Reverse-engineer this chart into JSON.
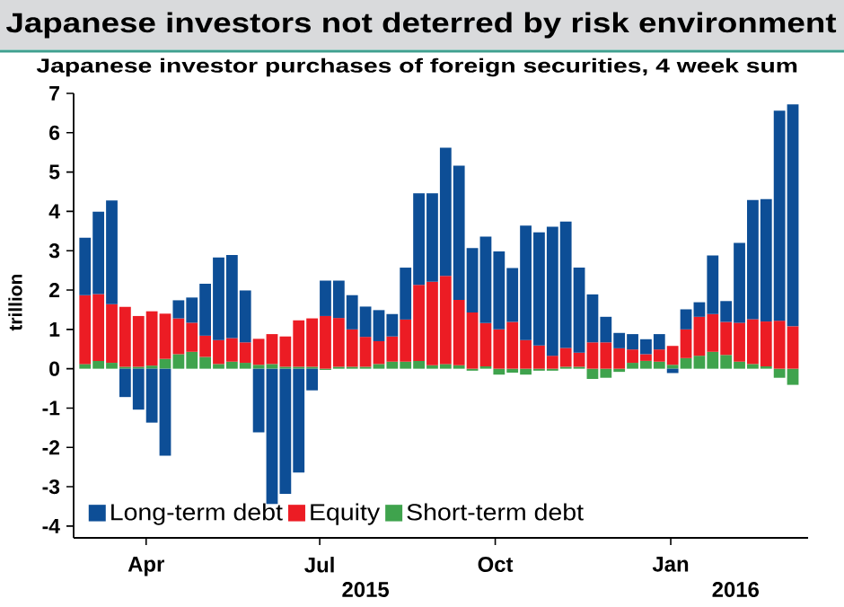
{
  "chart_data": {
    "type": "bar",
    "stacked": true,
    "title": "Japanese investors not deterred by risk environment",
    "subtitle": "Japanese investor purchases of foreign securities, 4 week sum",
    "ylabel": "trillion",
    "x": [
      "2015-02-28",
      "2015-03-07",
      "2015-03-14",
      "2015-03-21",
      "2015-03-28",
      "2015-04-04",
      "2015-04-11",
      "2015-04-18",
      "2015-04-25",
      "2015-05-02",
      "2015-05-09",
      "2015-05-16",
      "2015-05-23",
      "2015-05-30",
      "2015-06-06",
      "2015-06-13",
      "2015-06-20",
      "2015-06-27",
      "2015-07-04",
      "2015-07-11",
      "2015-07-18",
      "2015-07-25",
      "2015-08-01",
      "2015-08-08",
      "2015-08-15",
      "2015-08-22",
      "2015-08-29",
      "2015-09-05",
      "2015-09-12",
      "2015-09-19",
      "2015-09-26",
      "2015-10-03",
      "2015-10-10",
      "2015-10-17",
      "2015-10-24",
      "2015-10-31",
      "2015-11-07",
      "2015-11-14",
      "2015-11-21",
      "2015-11-28",
      "2015-12-05",
      "2015-12-12",
      "2015-12-19",
      "2015-12-26",
      "2016-01-02",
      "2016-01-09",
      "2016-01-16",
      "2016-01-23",
      "2016-01-30",
      "2016-02-06",
      "2016-02-13",
      "2016-02-20",
      "2016-02-27",
      "2016-03-05"
    ],
    "series": [
      {
        "name": "Short-term debt",
        "color": "#3fa34d",
        "values": [
          0.12,
          0.2,
          0.15,
          0.05,
          0.05,
          0.08,
          0.25,
          0.37,
          0.43,
          0.3,
          0.12,
          0.18,
          0.15,
          0.1,
          0.12,
          0.05,
          0.05,
          0.05,
          -0.03,
          0.05,
          0.05,
          0.05,
          0.12,
          0.18,
          0.18,
          0.2,
          0.09,
          0.12,
          0.09,
          -0.05,
          0.06,
          -0.15,
          -0.1,
          -0.15,
          -0.05,
          -0.05,
          0.05,
          0.05,
          -0.26,
          -0.23,
          -0.08,
          0.15,
          0.2,
          0.18,
          0.1,
          0.27,
          0.33,
          0.43,
          0.35,
          0.18,
          0.12,
          0.06,
          -0.23,
          -0.41
        ]
      },
      {
        "name": "Equity",
        "color": "#ec1c24",
        "values": [
          1.75,
          1.7,
          1.49,
          1.52,
          1.29,
          1.38,
          1.15,
          0.91,
          0.74,
          0.54,
          0.61,
          0.6,
          0.52,
          0.66,
          0.76,
          0.77,
          1.18,
          1.23,
          1.34,
          1.24,
          0.95,
          0.76,
          0.58,
          0.64,
          1.07,
          1.93,
          2.12,
          2.24,
          1.66,
          1.43,
          1.1,
          1.0,
          1.19,
          0.73,
          0.59,
          0.33,
          0.48,
          0.36,
          0.67,
          0.67,
          0.52,
          0.34,
          0.17,
          0.31,
          0.48,
          0.73,
          0.99,
          0.96,
          0.84,
          0.99,
          1.14,
          1.14,
          1.22,
          1.08
        ]
      },
      {
        "name": "Long-term debt",
        "color": "#0d4e96",
        "values": [
          1.46,
          2.09,
          2.64,
          -0.72,
          -1.04,
          -1.37,
          -2.21,
          0.46,
          0.64,
          1.32,
          2.1,
          2.11,
          1.32,
          -1.62,
          -3.44,
          -3.18,
          -2.64,
          -0.55,
          0.9,
          0.95,
          0.87,
          0.77,
          0.79,
          0.57,
          1.32,
          2.33,
          2.25,
          3.26,
          3.41,
          1.64,
          2.2,
          1.98,
          1.37,
          2.91,
          2.88,
          3.28,
          3.21,
          2.16,
          1.22,
          0.65,
          0.39,
          0.39,
          0.38,
          0.39,
          -0.11,
          0.51,
          0.37,
          1.49,
          0.53,
          2.03,
          3.03,
          3.11,
          5.34,
          5.64
        ]
      }
    ],
    "xlim": [
      "2015-02-22",
      "2016-03-13"
    ],
    "xticks": [
      {
        "value": "2015-04-01",
        "label": "Apr"
      },
      {
        "value": "2015-07-01",
        "label": "Jul"
      },
      {
        "value": "2015-10-01",
        "label": "Oct"
      },
      {
        "value": "2016-01-01",
        "label": "Jan"
      }
    ],
    "x2lim": [
      "2015-02-22",
      "2016-03-13"
    ],
    "x2ticks": [
      {
        "value": "2015-07-25",
        "label": "2015"
      },
      {
        "value": "2016-02-04",
        "label": "2016"
      }
    ],
    "ylim": [
      -4.3,
      7
    ],
    "yticks": [
      -4,
      -3,
      -2,
      -1,
      0,
      1,
      2,
      3,
      4,
      5,
      6,
      7
    ],
    "legend": "bottom left"
  }
}
